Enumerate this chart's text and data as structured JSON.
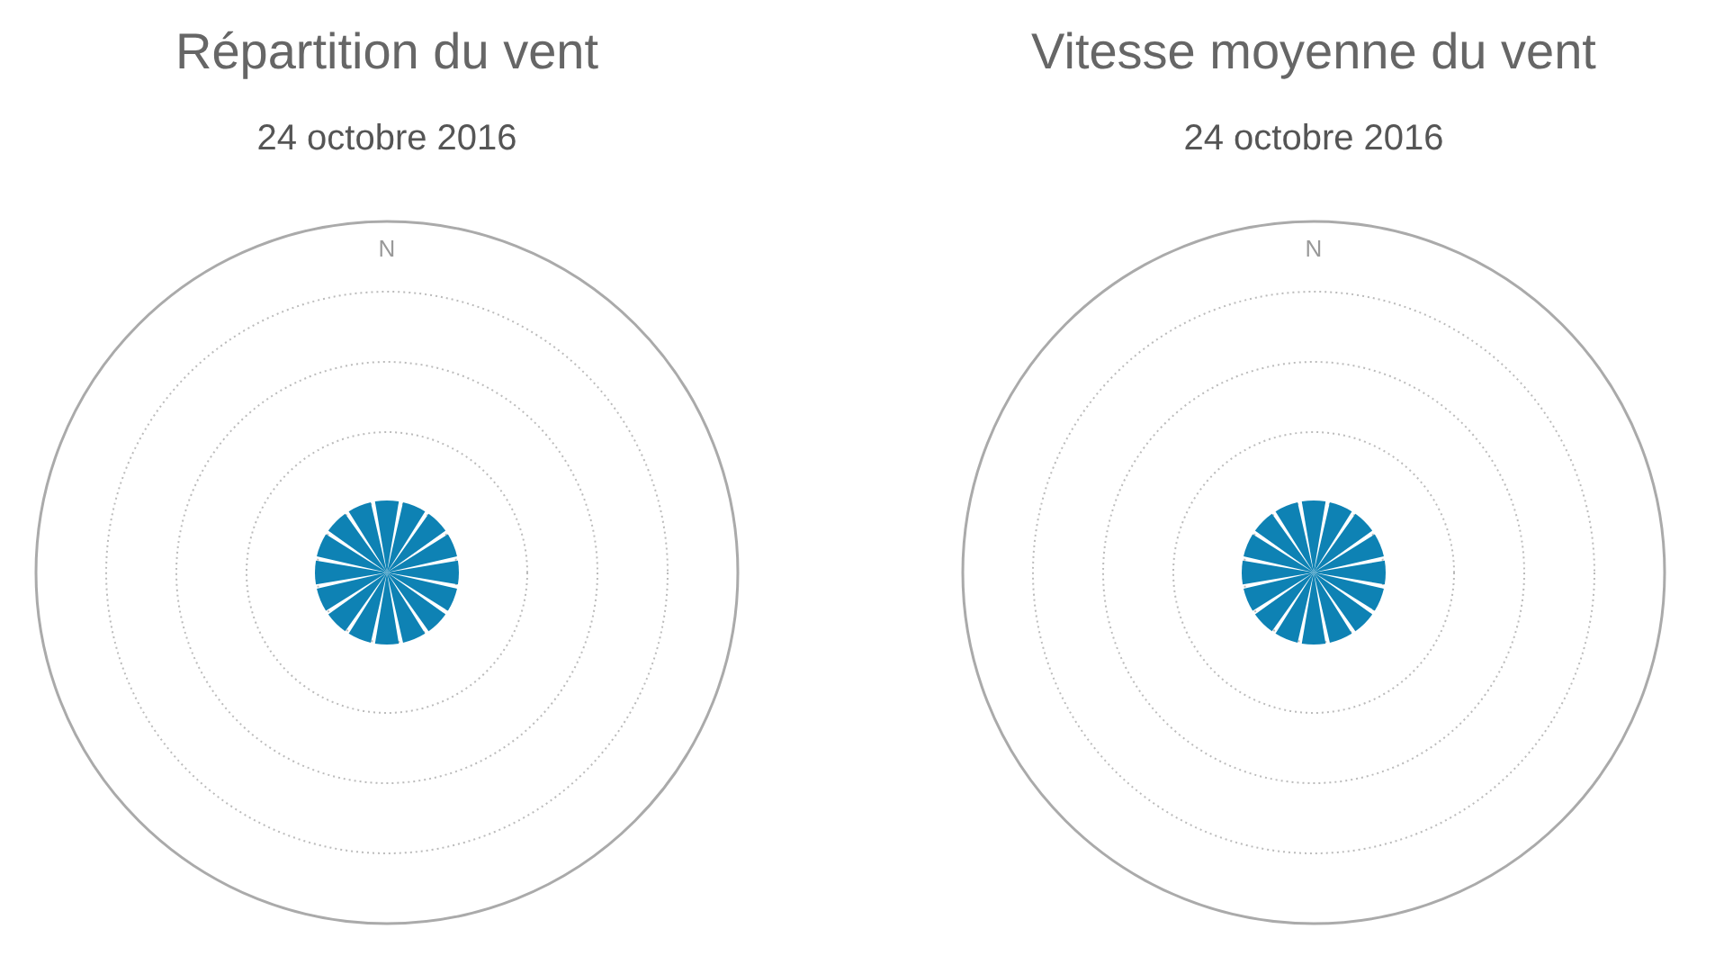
{
  "chart_data": [
    {
      "type": "pie",
      "title": "Répartition du vent",
      "subtitle": "24 octobre 2016",
      "grid": true,
      "annotations": [
        "N"
      ],
      "categories": [
        null,
        null,
        null,
        null,
        null,
        null,
        null,
        null,
        null,
        null,
        null,
        null,
        null,
        null,
        null,
        null
      ],
      "values": [
        6.25,
        6.25,
        6.25,
        6.25,
        6.25,
        6.25,
        6.25,
        6.25,
        6.25,
        6.25,
        6.25,
        6.25,
        6.25,
        6.25,
        6.25,
        6.25
      ],
      "colors": [
        "#0e82b4",
        "#0e82b4",
        "#0e82b4",
        "#0e82b4",
        "#0e82b4",
        "#0e82b4",
        "#0e82b4",
        "#0e82b4",
        "#0e82b4",
        "#0e82b4",
        "#0e82b4",
        "#0e82b4",
        "#0e82b4",
        "#0e82b4",
        "#0e82b4",
        "#0e82b4"
      ]
    },
    {
      "type": "pie",
      "title": "Vitesse moyenne du vent",
      "subtitle": "24 octobre 2016",
      "grid": true,
      "annotations": [
        "N"
      ],
      "categories": [
        null,
        null,
        null,
        null,
        null,
        null,
        null,
        null,
        null,
        null,
        null,
        null,
        null,
        null,
        null,
        null
      ],
      "values": [
        6.25,
        6.25,
        6.25,
        6.25,
        6.25,
        6.25,
        6.25,
        6.25,
        6.25,
        6.25,
        6.25,
        6.25,
        6.25,
        6.25,
        6.25,
        6.25
      ],
      "colors": [
        "#0e82b4",
        "#0e82b4",
        "#0e82b4",
        "#0e82b4",
        "#0e82b4",
        "#0e82b4",
        "#0e82b4",
        "#0e82b4",
        "#0e82b4",
        "#0e82b4",
        "#0e82b4",
        "#0e82b4",
        "#0e82b4",
        "#0e82b4",
        "#0e82b4",
        "#0e82b4"
      ]
    }
  ]
}
